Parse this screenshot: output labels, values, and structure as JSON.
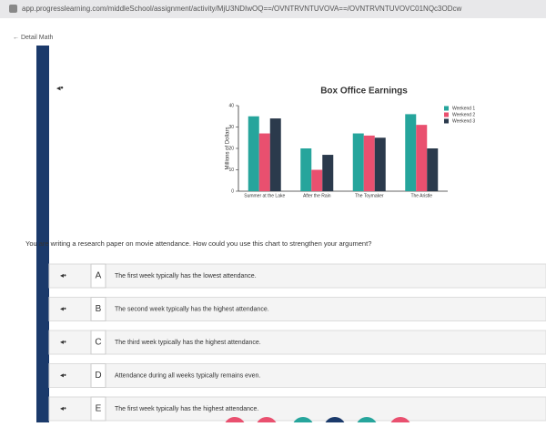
{
  "browser": {
    "url": "app.progresslearning.com/middleSchool/assignment/activity/MjU3NDIwOQ==/OVNTRVNTUVOVA==/OVNTRVNTUVOVC01NQc3ODcw"
  },
  "header": {
    "back": "Detail Math"
  },
  "chart_data": {
    "type": "bar",
    "title": "Box Office Earnings",
    "y_label": "Millions of Dollars",
    "categories": [
      "Summer at the Lake",
      "After the Rain",
      "The Toymaker",
      "The Aristle"
    ],
    "series": [
      {
        "name": "Weekend 1",
        "color": "#26a59c",
        "values": [
          35,
          20,
          27,
          36
        ]
      },
      {
        "name": "Weekend 2",
        "color": "#e9506f",
        "values": [
          27,
          10,
          26,
          31
        ]
      },
      {
        "name": "Weekend 3",
        "color": "#2b3a4c",
        "values": [
          34,
          17,
          25,
          20
        ]
      }
    ],
    "ylim": [
      0,
      40
    ],
    "yticks": [
      0,
      10,
      20,
      30,
      40
    ],
    "grid": false,
    "legend": "top-right"
  },
  "question": "You are writing a research paper on movie attendance. How could you use this chart to strengthen your argument?",
  "options": [
    {
      "letter": "A",
      "text": "The first week typically has the lowest attendance."
    },
    {
      "letter": "B",
      "text": "The second week typically has the highest attendance."
    },
    {
      "letter": "C",
      "text": "The third week typically has the highest attendance."
    },
    {
      "letter": "D",
      "text": "Attendance during all weeks typically remains even."
    },
    {
      "letter": "E",
      "text": "The first week typically has the highest attendance."
    }
  ]
}
